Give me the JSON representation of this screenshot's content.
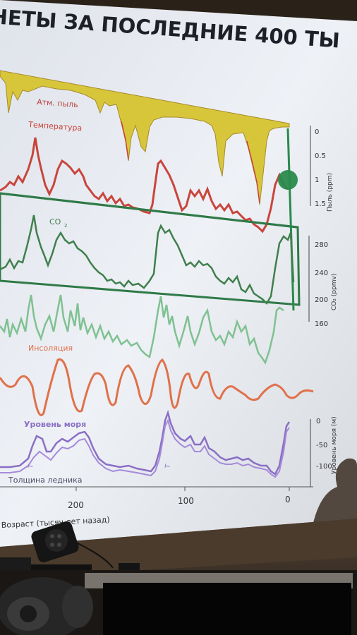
{
  "slide": {
    "title": "НЕТЫ ЗА ПОСЛЕДНИЕ 400 ТЫ",
    "label_dust": "Атм. пыль",
    "label_temp": "Температура",
    "label_co2": "CO",
    "label_co2_sub": "2",
    "label_insolation": "Инсоляция",
    "label_sealevel": "Уровень моря",
    "label_ice": "Толщина ледника",
    "xlabel": "Возраст (тысяч лет назад)",
    "xticks": [
      "200",
      "100",
      "0"
    ],
    "dust_ticks": [
      "0",
      "0.5",
      "1",
      "1.5"
    ],
    "dust_axis": "Пыль (ppm)",
    "co2_ticks": [
      "280",
      "240",
      "200",
      "160"
    ],
    "co2_axis": "CO₂ (ppmv)",
    "sea_ticks": [
      "0",
      "-50",
      "-100"
    ],
    "sea_axis": "Уровень моря (м)",
    "t_marker": "T",
    "t_marker2": "T"
  },
  "colors": {
    "screen": "#e9ecf2",
    "dust": "#d8c63a",
    "temperature": "#c9453c",
    "co2": "#3f7f4c",
    "co2_light": "#7fc191",
    "insolation": "#e0714a",
    "sealevel": "#8a6fc4",
    "box": "#2f7a48",
    "marker": "#2a8a4c"
  }
}
